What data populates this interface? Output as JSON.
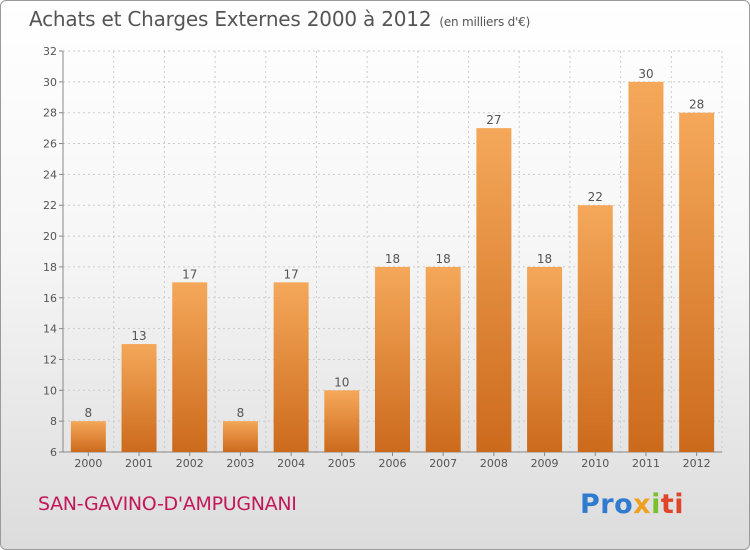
{
  "title": "Achats et Charges Externes 2000 à 2012",
  "title_unit": "(en milliers d'€)",
  "commune": "SAN-GAVINO-D'AMPUGNANI",
  "logo": {
    "p1": "Pro",
    "p2": "x",
    "p3": "i",
    "p4": "ti"
  },
  "colors": {
    "bar_light": "#f5a85a",
    "bar_dark": "#cc6a1c",
    "grid": "#cccccc",
    "commune": "#c2185b"
  },
  "chart_data": {
    "type": "bar",
    "title": "Achats et Charges Externes 2000 à 2012",
    "subtitle": "(en milliers d'€)",
    "categories": [
      "2000",
      "2001",
      "2002",
      "2003",
      "2004",
      "2005",
      "2006",
      "2007",
      "2008",
      "2009",
      "2010",
      "2011",
      "2012"
    ],
    "values": [
      8,
      13,
      17,
      8,
      17,
      10,
      18,
      18,
      27,
      18,
      22,
      30,
      28
    ],
    "ylim": [
      6,
      32
    ],
    "yticks": [
      6,
      8,
      10,
      12,
      14,
      16,
      18,
      20,
      22,
      24,
      26,
      28,
      30,
      32
    ],
    "grid": true,
    "data_labels": true
  }
}
